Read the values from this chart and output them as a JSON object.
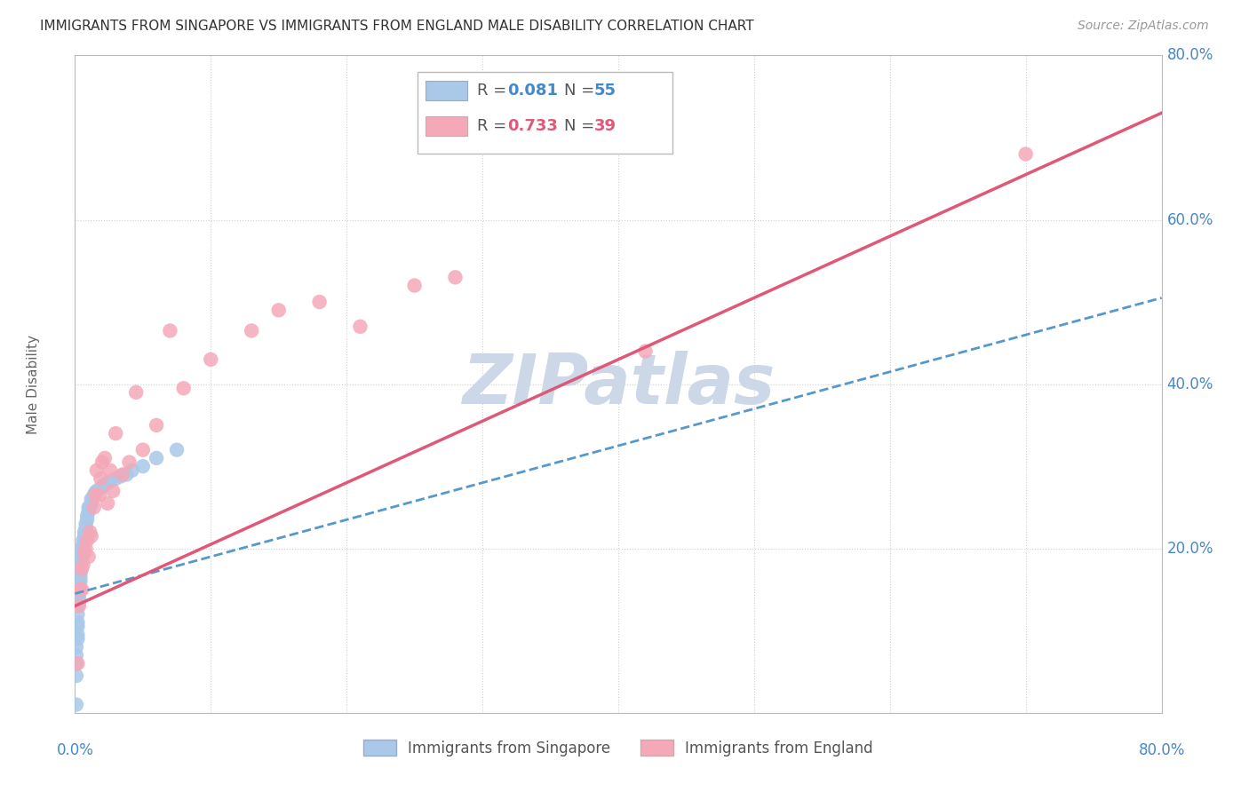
{
  "title": "IMMIGRANTS FROM SINGAPORE VS IMMIGRANTS FROM ENGLAND MALE DISABILITY CORRELATION CHART",
  "source": "Source: ZipAtlas.com",
  "xlabel_blue": "Immigrants from Singapore",
  "xlabel_pink": "Immigrants from England",
  "ylabel": "Male Disability",
  "xlim": [
    0.0,
    0.8
  ],
  "ylim": [
    0.0,
    0.8
  ],
  "blue_R": 0.081,
  "blue_N": 55,
  "pink_R": 0.733,
  "pink_N": 39,
  "blue_color": "#aac8e8",
  "pink_color": "#f4a8b8",
  "blue_line_color": "#5599cc",
  "pink_line_color": "#e05878",
  "bg_color": "#ffffff",
  "grid_color": "#d0d0d0",
  "watermark_color": "#ccd8e8",
  "blue_scatter_x": [
    0.001,
    0.001,
    0.001,
    0.001,
    0.002,
    0.002,
    0.002,
    0.002,
    0.002,
    0.002,
    0.003,
    0.003,
    0.003,
    0.003,
    0.003,
    0.004,
    0.004,
    0.004,
    0.004,
    0.004,
    0.005,
    0.005,
    0.005,
    0.005,
    0.006,
    0.006,
    0.006,
    0.007,
    0.007,
    0.008,
    0.008,
    0.009,
    0.009,
    0.01,
    0.01,
    0.011,
    0.012,
    0.012,
    0.013,
    0.014,
    0.015,
    0.016,
    0.018,
    0.02,
    0.022,
    0.024,
    0.026,
    0.03,
    0.034,
    0.038,
    0.042,
    0.05,
    0.06,
    0.075,
    0.001
  ],
  "blue_scatter_y": [
    0.045,
    0.06,
    0.07,
    0.08,
    0.09,
    0.095,
    0.105,
    0.11,
    0.12,
    0.13,
    0.135,
    0.14,
    0.145,
    0.15,
    0.155,
    0.16,
    0.165,
    0.17,
    0.175,
    0.18,
    0.185,
    0.19,
    0.195,
    0.2,
    0.2,
    0.205,
    0.21,
    0.215,
    0.22,
    0.225,
    0.23,
    0.235,
    0.24,
    0.245,
    0.25,
    0.25,
    0.255,
    0.26,
    0.26,
    0.265,
    0.268,
    0.27,
    0.272,
    0.275,
    0.278,
    0.28,
    0.282,
    0.285,
    0.288,
    0.29,
    0.295,
    0.3,
    0.31,
    0.32,
    0.01
  ],
  "pink_scatter_x": [
    0.002,
    0.003,
    0.004,
    0.005,
    0.005,
    0.006,
    0.007,
    0.008,
    0.009,
    0.01,
    0.011,
    0.012,
    0.014,
    0.015,
    0.016,
    0.018,
    0.019,
    0.02,
    0.022,
    0.024,
    0.026,
    0.028,
    0.03,
    0.035,
    0.04,
    0.045,
    0.05,
    0.06,
    0.07,
    0.08,
    0.1,
    0.13,
    0.15,
    0.18,
    0.21,
    0.25,
    0.28,
    0.7,
    0.42
  ],
  "pink_scatter_y": [
    0.06,
    0.13,
    0.15,
    0.15,
    0.175,
    0.18,
    0.195,
    0.2,
    0.21,
    0.19,
    0.22,
    0.215,
    0.25,
    0.265,
    0.295,
    0.265,
    0.285,
    0.305,
    0.31,
    0.255,
    0.295,
    0.27,
    0.34,
    0.29,
    0.305,
    0.39,
    0.32,
    0.35,
    0.465,
    0.395,
    0.43,
    0.465,
    0.49,
    0.5,
    0.47,
    0.52,
    0.53,
    0.68,
    0.44
  ],
  "blue_line_x": [
    0.0,
    0.8
  ],
  "blue_line_y": [
    0.145,
    0.505
  ],
  "pink_line_x": [
    0.0,
    0.8
  ],
  "pink_line_y": [
    0.13,
    0.73
  ]
}
